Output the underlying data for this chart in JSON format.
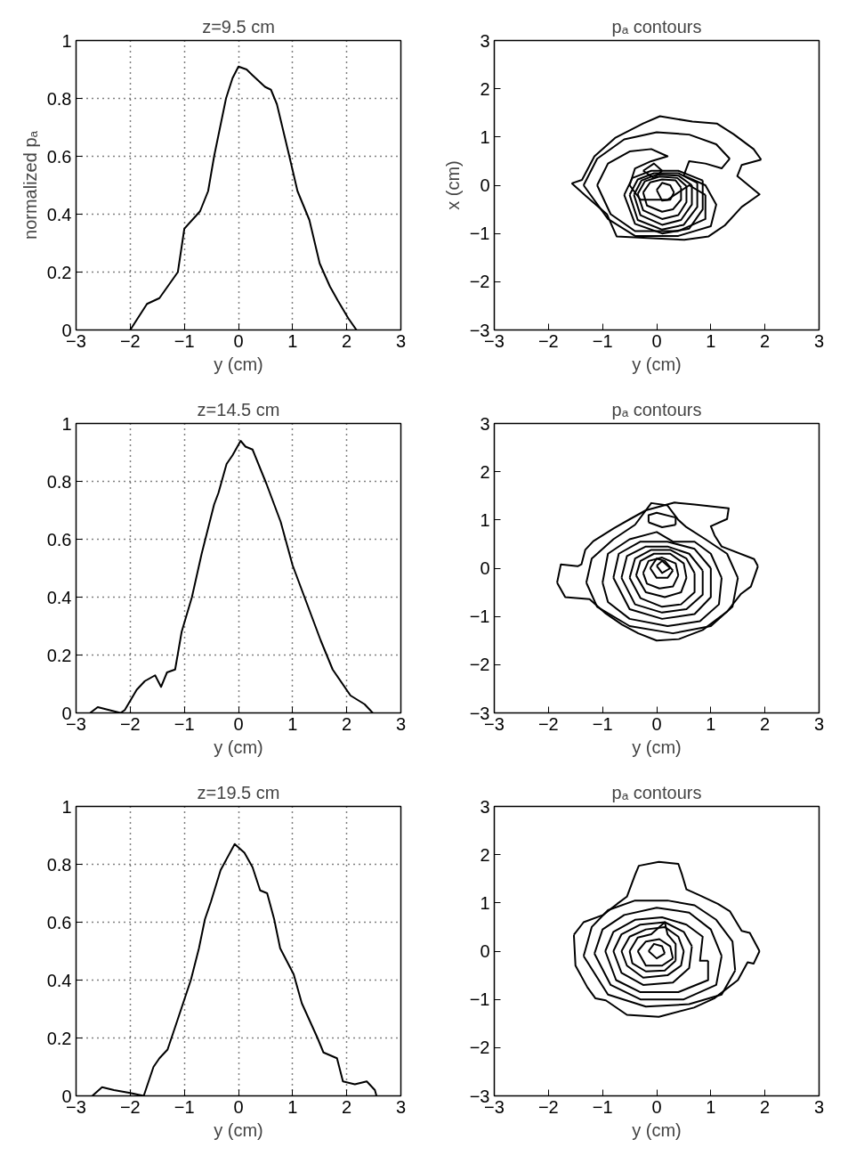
{
  "chart_data": [
    {
      "type": "line",
      "title": "z=9.5 cm",
      "xlabel": "y (cm)",
      "ylabel": "normalized pₐ",
      "xlim": [
        -3,
        3
      ],
      "ylim": [
        0,
        1
      ],
      "xticks": [
        -3,
        -2,
        -1,
        0,
        1,
        2,
        3
      ],
      "yticks": [
        0,
        0.2,
        0.4,
        0.6,
        0.8,
        1
      ],
      "grid": true,
      "line_style": "solid",
      "series": [
        {
          "color": "#000000",
          "x": [
            -2.0,
            -1.69,
            -1.46,
            -1.12,
            -1.0,
            -0.71,
            -0.56,
            -0.45,
            -0.23,
            -0.11,
            0.0,
            0.15,
            0.26,
            0.49,
            0.6,
            0.71,
            0.94,
            1.09,
            1.31,
            1.5,
            1.69,
            1.84,
            2.03,
            2.18
          ],
          "values": [
            0.0,
            0.09,
            0.11,
            0.2,
            0.35,
            0.41,
            0.48,
            0.6,
            0.8,
            0.87,
            0.91,
            0.9,
            0.88,
            0.84,
            0.83,
            0.78,
            0.6,
            0.48,
            0.38,
            0.23,
            0.15,
            0.1,
            0.04,
            0.0
          ]
        }
      ]
    },
    {
      "type": "line",
      "title": "pₐ contours",
      "xlabel": "y (cm)",
      "ylabel": "x (cm)",
      "xlim": [
        -3,
        3
      ],
      "ylim": [
        -3,
        3
      ],
      "xticks": [
        -3,
        -2,
        -1,
        0,
        1,
        2,
        3
      ],
      "yticks": [
        -3,
        -2,
        -1,
        0,
        1,
        2,
        3
      ],
      "line_style": "solid",
      "series": [
        {
          "color": "#000000",
          "x": [
            -1.57,
            -1.38,
            -1.15,
            -0.77,
            -0.25,
            0.06,
            0.66,
            1.11,
            1.42,
            1.79,
            1.93
          ],
          "values": [
            0.04,
            0.11,
            0.6,
            0.98,
            1.28,
            1.43,
            1.32,
            1.28,
            1.06,
            0.75,
            0.53
          ]
        },
        {
          "color": "#000000",
          "x": [
            1.93,
            1.57,
            1.49,
            1.9,
            1.57,
            1.26,
            0.96,
            0.51,
            -0.25,
            -0.74,
            -0.92,
            -1.3,
            -1.57
          ],
          "values": [
            0.53,
            0.42,
            0.19,
            -0.19,
            -0.45,
            -0.83,
            -1.06,
            -1.13,
            -1.09,
            -1.06,
            -0.6,
            -0.23,
            0.04
          ]
        },
        {
          "color": "#000000",
          "x": [
            -1.35,
            -1.1,
            -0.6,
            0.0,
            0.6,
            1.1,
            1.35
          ],
          "values": [
            0.0,
            0.55,
            0.95,
            1.1,
            1.05,
            0.85,
            0.55
          ]
        },
        {
          "color": "#000000",
          "x": [
            1.35,
            1.2,
            0.9,
            0.6,
            0.5,
            0.9,
            1.1,
            1.0,
            0.4,
            -0.4,
            -0.9,
            -1.35
          ],
          "values": [
            0.55,
            0.35,
            0.45,
            0.5,
            0.2,
            0.0,
            -0.4,
            -0.85,
            -1.05,
            -1.05,
            -0.7,
            0.0
          ]
        },
        {
          "color": "#000000",
          "x": [
            -1.1,
            -0.9,
            -0.5,
            -0.1,
            0.2,
            -0.1,
            -0.4,
            -0.5,
            -0.3,
            0.2,
            0.6,
            0.9
          ],
          "values": [
            0.0,
            0.45,
            0.7,
            0.75,
            0.6,
            0.5,
            0.35,
            0.0,
            -0.3,
            -0.3,
            0.0,
            -0.2
          ]
        },
        {
          "color": "#000000",
          "x": [
            0.9,
            0.9,
            0.4,
            -0.4,
            -0.85,
            -1.1
          ],
          "values": [
            -0.2,
            -0.7,
            -0.95,
            -0.95,
            -0.6,
            0.0
          ]
        },
        {
          "color": "#000000",
          "x": [
            -0.25,
            -0.05,
            0.1
          ],
          "values": [
            0.3,
            0.45,
            0.3
          ]
        },
        {
          "color": "#000000",
          "x": [
            0.1,
            -0.05,
            -0.25
          ],
          "values": [
            0.3,
            0.15,
            0.3
          ]
        },
        {
          "color": "#000000",
          "x": [
            -0.6,
            -0.45,
            -0.1,
            0.4,
            0.85
          ],
          "values": [
            -0.2,
            0.15,
            0.3,
            0.3,
            0.1
          ]
        },
        {
          "color": "#000000",
          "x": [
            0.85,
            0.85,
            0.6,
            0.1,
            -0.4,
            -0.6
          ],
          "values": [
            0.1,
            -0.5,
            -0.9,
            -1.0,
            -0.8,
            -0.2
          ]
        },
        {
          "color": "#000000",
          "x": [
            -0.5,
            -0.35,
            -0.05,
            0.4,
            0.75
          ],
          "values": [
            -0.2,
            0.12,
            0.25,
            0.25,
            0.05
          ]
        },
        {
          "color": "#000000",
          "x": [
            0.75,
            0.75,
            0.5,
            0.1,
            -0.35,
            -0.5
          ],
          "values": [
            0.05,
            -0.45,
            -0.82,
            -0.92,
            -0.72,
            -0.2
          ]
        },
        {
          "color": "#000000",
          "x": [
            -0.42,
            -0.28,
            0.0,
            0.4,
            0.65
          ],
          "values": [
            -0.2,
            0.1,
            0.22,
            0.2,
            0.0
          ]
        },
        {
          "color": "#000000",
          "x": [
            0.65,
            0.65,
            0.45,
            0.1,
            -0.3,
            -0.42
          ],
          "values": [
            0.0,
            -0.4,
            -0.72,
            -0.82,
            -0.62,
            -0.2
          ]
        },
        {
          "color": "#000000",
          "x": [
            -0.35,
            -0.22,
            0.05,
            0.38,
            0.55
          ],
          "values": [
            -0.18,
            0.08,
            0.18,
            0.15,
            -0.02
          ]
        },
        {
          "color": "#000000",
          "x": [
            0.55,
            0.55,
            0.4,
            0.1,
            -0.25,
            -0.35
          ],
          "values": [
            -0.02,
            -0.35,
            -0.62,
            -0.7,
            -0.52,
            -0.18
          ]
        },
        {
          "color": "#000000",
          "x": [
            -0.25,
            -0.12,
            0.1,
            0.35,
            0.45
          ],
          "values": [
            -0.15,
            0.06,
            0.12,
            0.1,
            -0.05
          ]
        },
        {
          "color": "#000000",
          "x": [
            0.45,
            0.45,
            0.3,
            0.1,
            -0.18,
            -0.25
          ],
          "values": [
            -0.05,
            -0.3,
            -0.5,
            -0.55,
            -0.42,
            -0.15
          ]
        },
        {
          "color": "#000000",
          "x": [
            0.0,
            0.1,
            0.25,
            0.32
          ],
          "values": [
            -0.1,
            0.05,
            0.0,
            -0.15
          ]
        },
        {
          "color": "#000000",
          "x": [
            0.32,
            0.25,
            0.1,
            0.0
          ],
          "values": [
            -0.15,
            -0.3,
            -0.32,
            -0.1
          ]
        }
      ]
    },
    {
      "type": "line",
      "title": "z=14.5 cm",
      "xlabel": "y (cm)",
      "xlim": [
        -3,
        3
      ],
      "ylim": [
        0,
        1
      ],
      "xticks": [
        -3,
        -2,
        -1,
        0,
        1,
        2,
        3
      ],
      "yticks": [
        0,
        0.2,
        0.4,
        0.6,
        0.8,
        1
      ],
      "grid": true,
      "line_style": "solid",
      "series": [
        {
          "color": "#000000",
          "x": [
            -2.74,
            -2.6,
            -2.18,
            -2.1,
            -1.88,
            -1.73,
            -1.54,
            -1.43,
            -1.32,
            -1.17,
            -1.05,
            -0.86,
            -0.68,
            -0.45,
            -0.37,
            -0.22,
            -0.11,
            0.04,
            0.13,
            0.26,
            0.52,
            0.78,
            1.0,
            1.26,
            1.52,
            1.74,
            2.07,
            2.33,
            2.48
          ],
          "values": [
            0.0,
            0.02,
            0.0,
            0.01,
            0.08,
            0.11,
            0.13,
            0.09,
            0.14,
            0.15,
            0.28,
            0.4,
            0.55,
            0.72,
            0.76,
            0.86,
            0.89,
            0.94,
            0.92,
            0.91,
            0.79,
            0.66,
            0.51,
            0.38,
            0.25,
            0.15,
            0.06,
            0.03,
            0.0
          ]
        }
      ]
    },
    {
      "type": "line",
      "title": "pₐ contours",
      "xlabel": "y (cm)",
      "xlim": [
        -3,
        3
      ],
      "ylim": [
        -3,
        3
      ],
      "xticks": [
        -3,
        -2,
        -1,
        0,
        1,
        2,
        3
      ],
      "yticks": [
        -3,
        -2,
        -1,
        0,
        1,
        2,
        3
      ],
      "line_style": "solid",
      "series": [
        {
          "color": "#000000",
          "x": [
            -1.84,
            -1.69,
            -1.24,
            -0.94,
            -0.64,
            -0.34,
            0.0,
            0.41,
            0.85,
            1.3,
            1.56,
            1.74,
            1.87
          ],
          "values": [
            -0.3,
            -0.6,
            -0.64,
            -0.94,
            -1.17,
            -1.35,
            -1.5,
            -1.47,
            -1.28,
            -0.9,
            -0.53,
            -0.38,
            0.04
          ]
        },
        {
          "color": "#000000",
          "x": [
            1.87,
            1.8,
            1.2,
            1.07,
            1.0,
            1.3,
            1.33,
            0.7,
            0.33,
            -0.2,
            -0.49,
            -0.79,
            -1.17,
            -1.32,
            -1.39,
            -1.46,
            -1.77,
            -1.84
          ],
          "values": [
            0.04,
            0.19,
            0.45,
            0.68,
            0.87,
            1.02,
            1.24,
            1.32,
            1.36,
            1.2,
            1.02,
            0.83,
            0.56,
            0.38,
            0.08,
            0.04,
            0.08,
            -0.3
          ]
        },
        {
          "color": "#000000",
          "x": [
            -1.3,
            -1.2,
            -0.8,
            -0.4,
            -0.1,
            0.2,
            0.4,
            0.55,
            0.9,
            1.3,
            1.5
          ],
          "values": [
            -0.3,
            0.2,
            0.6,
            0.9,
            1.35,
            1.3,
            1.0,
            0.85,
            0.6,
            0.3,
            -0.2
          ]
        },
        {
          "color": "#000000",
          "x": [
            1.5,
            1.4,
            1.0,
            0.3,
            -0.5,
            -1.1,
            -1.3
          ],
          "values": [
            -0.2,
            -0.8,
            -1.2,
            -1.35,
            -1.2,
            -0.8,
            -0.3
          ]
        },
        {
          "color": "#000000",
          "x": [
            -0.15,
            -0.15,
            0.0,
            0.35,
            0.35
          ],
          "values": [
            0.95,
            1.1,
            1.15,
            1.05,
            0.9
          ]
        },
        {
          "color": "#000000",
          "x": [
            0.35,
            0.1,
            -0.15
          ],
          "values": [
            0.9,
            0.85,
            0.95
          ]
        },
        {
          "color": "#000000",
          "x": [
            -1.0,
            -0.9,
            -0.5,
            0.0,
            0.3,
            0.7,
            1.0,
            1.2
          ],
          "values": [
            -0.3,
            0.3,
            0.6,
            0.75,
            0.55,
            0.55,
            0.3,
            -0.2
          ]
        },
        {
          "color": "#000000",
          "x": [
            1.2,
            1.15,
            0.8,
            0.2,
            -0.5,
            -0.9,
            -1.0
          ],
          "values": [
            -0.2,
            -0.75,
            -1.1,
            -1.2,
            -1.05,
            -0.7,
            -0.3
          ]
        },
        {
          "color": "#000000",
          "x": [
            -0.8,
            -0.7,
            -0.3,
            0.2,
            0.7,
            1.0
          ],
          "values": [
            -0.2,
            0.3,
            0.55,
            0.55,
            0.4,
            0.0
          ]
        },
        {
          "color": "#000000",
          "x": [
            1.0,
            1.0,
            0.7,
            0.1,
            -0.5,
            -0.8
          ],
          "values": [
            0.0,
            -0.6,
            -0.95,
            -1.05,
            -0.85,
            -0.2
          ]
        },
        {
          "color": "#000000",
          "x": [
            -0.65,
            -0.55,
            -0.2,
            0.2,
            0.6,
            0.85
          ],
          "values": [
            -0.2,
            0.25,
            0.45,
            0.45,
            0.3,
            -0.05
          ]
        },
        {
          "color": "#000000",
          "x": [
            0.85,
            0.85,
            0.55,
            0.1,
            -0.4,
            -0.65
          ],
          "values": [
            -0.05,
            -0.55,
            -0.85,
            -0.92,
            -0.75,
            -0.2
          ]
        },
        {
          "color": "#000000",
          "x": [
            -0.5,
            -0.4,
            -0.1,
            0.25,
            0.55,
            0.7
          ],
          "values": [
            -0.2,
            0.2,
            0.38,
            0.38,
            0.2,
            -0.1
          ]
        },
        {
          "color": "#000000",
          "x": [
            0.7,
            0.7,
            0.45,
            0.1,
            -0.3,
            -0.5
          ],
          "values": [
            -0.1,
            -0.5,
            -0.75,
            -0.8,
            -0.62,
            -0.2
          ]
        },
        {
          "color": "#000000",
          "x": [
            -0.38,
            -0.3,
            -0.05,
            0.25,
            0.5,
            0.55
          ],
          "values": [
            -0.15,
            0.15,
            0.3,
            0.3,
            0.1,
            -0.2
          ]
        },
        {
          "color": "#000000",
          "x": [
            0.55,
            0.45,
            0.15,
            -0.2,
            -0.38
          ],
          "values": [
            -0.2,
            -0.5,
            -0.6,
            -0.5,
            -0.15
          ]
        },
        {
          "color": "#000000",
          "x": [
            -0.25,
            -0.15,
            0.1,
            0.35,
            0.4
          ],
          "values": [
            -0.1,
            0.15,
            0.22,
            0.1,
            -0.15
          ]
        },
        {
          "color": "#000000",
          "x": [
            0.4,
            0.3,
            0.05,
            -0.18,
            -0.25
          ],
          "values": [
            -0.15,
            -0.38,
            -0.42,
            -0.32,
            -0.1
          ]
        },
        {
          "color": "#000000",
          "x": [
            -0.12,
            0.0,
            0.15,
            0.3
          ],
          "values": [
            0.0,
            0.2,
            0.15,
            -0.05
          ]
        },
        {
          "color": "#000000",
          "x": [
            0.3,
            0.2,
            0.0,
            -0.12
          ],
          "values": [
            -0.05,
            -0.2,
            -0.2,
            0.0
          ]
        },
        {
          "color": "#000000",
          "x": [
            0.0,
            0.1,
            0.25
          ],
          "values": [
            0.05,
            0.15,
            0.0
          ]
        },
        {
          "color": "#000000",
          "x": [
            0.25,
            0.1,
            0.0
          ],
          "values": [
            0.0,
            -0.1,
            0.05
          ]
        }
      ]
    },
    {
      "type": "line",
      "title": "z=19.5 cm",
      "xlabel": "y (cm)",
      "xlim": [
        -3,
        3
      ],
      "ylim": [
        0,
        1
      ],
      "xticks": [
        -3,
        -2,
        -1,
        0,
        1,
        2,
        3
      ],
      "yticks": [
        0,
        0.2,
        0.4,
        0.6,
        0.8,
        1
      ],
      "grid": true,
      "line_style": "solid",
      "series": [
        {
          "color": "#000000",
          "x": [
            -2.7,
            -2.52,
            -2.3,
            -2.0,
            -1.75,
            -1.57,
            -1.46,
            -1.31,
            -1.13,
            -0.88,
            -0.73,
            -0.62,
            -0.51,
            -0.33,
            -0.07,
            0.11,
            0.26,
            0.4,
            0.53,
            0.66,
            0.77,
            1.02,
            1.17,
            1.46,
            1.57,
            1.82,
            1.93,
            2.15,
            2.37,
            2.52,
            2.55
          ],
          "values": [
            0.0,
            0.03,
            0.02,
            0.01,
            0.0,
            0.1,
            0.13,
            0.16,
            0.26,
            0.4,
            0.51,
            0.61,
            0.67,
            0.78,
            0.87,
            0.84,
            0.79,
            0.71,
            0.7,
            0.61,
            0.51,
            0.42,
            0.32,
            0.2,
            0.15,
            0.13,
            0.05,
            0.04,
            0.05,
            0.02,
            0.0
          ]
        }
      ]
    },
    {
      "type": "line",
      "title": "pₐ contours",
      "xlabel": "y (cm)",
      "xlim": [
        -3,
        3
      ],
      "ylim": [
        -3,
        3
      ],
      "xticks": [
        -3,
        -2,
        -1,
        0,
        1,
        2,
        3
      ],
      "yticks": [
        -3,
        -2,
        -1,
        0,
        1,
        2,
        3
      ],
      "line_style": "solid",
      "series": [
        {
          "color": "#000000",
          "x": [
            -1.53,
            -1.5,
            -1.28,
            -1.13,
            -0.94,
            -0.55,
            0.04,
            0.69,
            1.06,
            1.5,
            1.68,
            1.79,
            1.9
          ],
          "values": [
            0.34,
            -0.3,
            -0.75,
            -0.98,
            -1.02,
            -1.32,
            -1.36,
            -1.17,
            -0.98,
            -0.6,
            -0.23,
            -0.26,
            0.0
          ]
        },
        {
          "color": "#000000",
          "x": [
            1.9,
            1.72,
            1.57,
            1.35,
            1.13,
            0.77,
            0.55,
            0.47,
            0.4,
            0.04,
            -0.33,
            -0.4,
            -0.55,
            -0.73,
            -0.99,
            -1.35,
            -1.53
          ],
          "values": [
            0.0,
            0.38,
            0.42,
            0.83,
            0.98,
            1.17,
            1.28,
            1.58,
            1.81,
            1.85,
            1.77,
            1.58,
            1.13,
            0.98,
            0.75,
            0.6,
            0.34
          ]
        },
        {
          "color": "#000000",
          "x": [
            -1.35,
            -1.2,
            -0.9,
            -0.4,
            0.2,
            0.7,
            1.1,
            1.4,
            1.45
          ],
          "values": [
            -0.1,
            0.5,
            0.85,
            1.05,
            1.05,
            0.95,
            0.65,
            0.2,
            -0.4
          ]
        },
        {
          "color": "#000000",
          "x": [
            1.45,
            1.2,
            0.6,
            -0.2,
            -0.9,
            -1.35
          ],
          "values": [
            -0.4,
            -0.9,
            -1.1,
            -1.15,
            -0.9,
            -0.1
          ]
        },
        {
          "color": "#000000",
          "x": [
            -1.15,
            -1.0,
            -0.6,
            0.0,
            0.6,
            1.0,
            1.2
          ],
          "values": [
            -0.05,
            0.45,
            0.75,
            0.9,
            0.8,
            0.45,
            -0.1
          ]
        },
        {
          "color": "#000000",
          "x": [
            1.2,
            1.1,
            0.5,
            -0.3,
            -0.85,
            -1.15
          ],
          "values": [
            -0.1,
            -0.7,
            -1.0,
            -1.0,
            -0.7,
            -0.05
          ]
        },
        {
          "color": "#000000",
          "x": [
            -0.95,
            -0.8,
            -0.4,
            0.1,
            0.55,
            0.85,
            0.8,
            0.95
          ],
          "values": [
            0.0,
            0.4,
            0.65,
            0.7,
            0.55,
            0.3,
            -0.2,
            -0.2
          ]
        },
        {
          "color": "#000000",
          "x": [
            0.95,
            0.95,
            0.4,
            -0.3,
            -0.75,
            -0.95
          ],
          "values": [
            -0.2,
            -0.6,
            -0.85,
            -0.85,
            -0.6,
            0.0
          ]
        },
        {
          "color": "#000000",
          "x": [
            -0.8,
            -0.65,
            -0.3,
            0.15,
            0.5,
            0.65
          ],
          "values": [
            0.0,
            0.35,
            0.55,
            0.6,
            0.4,
            0.1
          ]
        },
        {
          "color": "#000000",
          "x": [
            0.65,
            0.6,
            0.3,
            -0.25,
            -0.65,
            -0.8
          ],
          "values": [
            0.1,
            -0.35,
            -0.65,
            -0.7,
            -0.45,
            0.0
          ]
        },
        {
          "color": "#000000",
          "x": [
            -0.65,
            -0.5,
            -0.2,
            0.15,
            0.4,
            0.5
          ],
          "values": [
            0.0,
            0.3,
            0.45,
            0.5,
            0.3,
            0.0
          ]
        },
        {
          "color": "#000000",
          "x": [
            0.5,
            0.45,
            0.2,
            -0.25,
            -0.55,
            -0.65
          ],
          "values": [
            0.0,
            -0.3,
            -0.5,
            -0.55,
            -0.3,
            0.0
          ]
        },
        {
          "color": "#000000",
          "x": [
            -0.5,
            -0.35,
            -0.1,
            0.15,
            0.2,
            0.35,
            0.35
          ],
          "values": [
            0.0,
            0.28,
            0.35,
            0.6,
            0.35,
            0.15,
            -0.2
          ]
        },
        {
          "color": "#000000",
          "x": [
            0.35,
            0.15,
            -0.2,
            -0.45,
            -0.5
          ],
          "values": [
            -0.2,
            -0.4,
            -0.42,
            -0.25,
            0.0
          ]
        },
        {
          "color": "#000000",
          "x": [
            -0.35,
            -0.2,
            0.05,
            0.25,
            0.3
          ],
          "values": [
            0.0,
            0.2,
            0.25,
            0.1,
            -0.15
          ]
        },
        {
          "color": "#000000",
          "x": [
            0.3,
            0.1,
            -0.2,
            -0.35
          ],
          "values": [
            -0.15,
            -0.3,
            -0.3,
            0.0
          ]
        },
        {
          "color": "#000000",
          "x": [
            -0.15,
            -0.05,
            0.1,
            0.15
          ],
          "values": [
            0.0,
            0.15,
            0.1,
            -0.05
          ]
        },
        {
          "color": "#000000",
          "x": [
            0.15,
            0.0,
            -0.15
          ],
          "values": [
            -0.05,
            -0.15,
            0.0
          ]
        }
      ]
    }
  ]
}
